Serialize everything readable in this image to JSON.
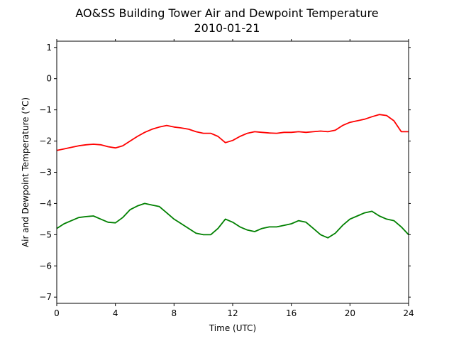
{
  "chart_data": {
    "type": "line",
    "title": "AO&SS Building Tower Air and Dewpoint Temperature",
    "subtitle": "2010-01-21",
    "xlabel": "Time (UTC)",
    "ylabel": "Air and Dewpoint Temperature (°C)",
    "xlim": [
      0,
      24
    ],
    "ylim": [
      -7.2,
      1.2
    ],
    "xticks": [
      0,
      4,
      8,
      12,
      16,
      20,
      24
    ],
    "xtick_labels": [
      "0",
      "4",
      "8",
      "12",
      "16",
      "20",
      "24"
    ],
    "yticks": [
      1,
      0,
      -1,
      -2,
      -3,
      -4,
      -5,
      -6,
      -7
    ],
    "ytick_labels": [
      "1",
      "0",
      "−1",
      "−2",
      "−3",
      "−4",
      "−5",
      "−6",
      "−7"
    ],
    "grid": false,
    "legend": "none",
    "series": [
      {
        "color": "#ff0000",
        "x": [
          0,
          0.5,
          1,
          1.5,
          2,
          2.5,
          3,
          3.5,
          4,
          4.5,
          5,
          5.5,
          6,
          6.5,
          7,
          7.5,
          8,
          8.5,
          9,
          9.5,
          10,
          10.5,
          11,
          11.5,
          12,
          12.5,
          13,
          13.5,
          14,
          14.5,
          15,
          15.5,
          16,
          16.5,
          17,
          17.5,
          18,
          18.5,
          19,
          19.5,
          20,
          20.5,
          21,
          21.5,
          22,
          22.5,
          23,
          23.5,
          24
        ],
        "y": [
          -2.3,
          -2.25,
          -2.2,
          -2.15,
          -2.12,
          -2.1,
          -2.12,
          -2.18,
          -2.22,
          -2.15,
          -2.0,
          -1.85,
          -1.72,
          -1.62,
          -1.55,
          -1.5,
          -1.55,
          -1.58,
          -1.62,
          -1.7,
          -1.75,
          -1.75,
          -1.85,
          -2.05,
          -1.98,
          -1.85,
          -1.75,
          -1.7,
          -1.72,
          -1.74,
          -1.75,
          -1.72,
          -1.72,
          -1.7,
          -1.72,
          -1.7,
          -1.68,
          -1.7,
          -1.65,
          -1.5,
          -1.4,
          -1.35,
          -1.3,
          -1.22,
          -1.15,
          -1.18,
          -1.35,
          -1.7,
          -1.7
        ]
      },
      {
        "color": "#008000",
        "x": [
          0,
          0.5,
          1,
          1.5,
          2,
          2.5,
          3,
          3.5,
          4,
          4.5,
          5,
          5.5,
          6,
          6.5,
          7,
          7.5,
          8,
          8.5,
          9,
          9.5,
          10,
          10.5,
          11,
          11.5,
          12,
          12.5,
          13,
          13.5,
          14,
          14.5,
          15,
          15.5,
          16,
          16.5,
          17,
          17.5,
          18,
          18.5,
          19,
          19.5,
          20,
          20.5,
          21,
          21.5,
          22,
          22.5,
          23,
          23.5,
          24
        ],
        "y": [
          -4.8,
          -4.65,
          -4.55,
          -4.45,
          -4.42,
          -4.4,
          -4.5,
          -4.6,
          -4.62,
          -4.45,
          -4.2,
          -4.08,
          -4.0,
          -4.05,
          -4.1,
          -4.3,
          -4.5,
          -4.65,
          -4.8,
          -4.95,
          -5.0,
          -5.0,
          -4.8,
          -4.5,
          -4.6,
          -4.75,
          -4.85,
          -4.9,
          -4.8,
          -4.75,
          -4.75,
          -4.7,
          -4.65,
          -4.55,
          -4.6,
          -4.8,
          -5.0,
          -5.1,
          -4.95,
          -4.7,
          -4.5,
          -4.4,
          -4.3,
          -4.25,
          -4.4,
          -4.5,
          -4.55,
          -4.75,
          -5.0
        ]
      }
    ]
  }
}
